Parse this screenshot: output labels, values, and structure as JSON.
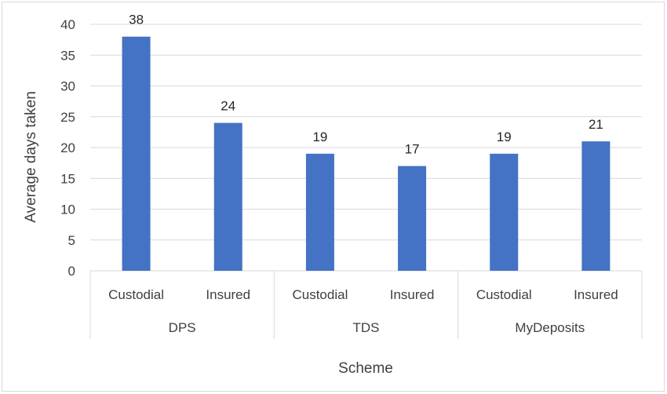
{
  "chart_data": {
    "type": "bar",
    "title": "",
    "xlabel": "Scheme",
    "ylabel": "Average days taken",
    "ylim": [
      0,
      40
    ],
    "yticks": [
      0,
      5,
      10,
      15,
      20,
      25,
      30,
      35,
      40
    ],
    "groups": [
      {
        "label": "DPS",
        "categories": [
          "Custodial",
          "Insured"
        ]
      },
      {
        "label": "TDS",
        "categories": [
          "Custodial",
          "Insured"
        ]
      },
      {
        "label": "MyDeposits",
        "categories": [
          "Custodial",
          "Insured"
        ]
      }
    ],
    "values": [
      38,
      24,
      19,
      17,
      19,
      21
    ],
    "bar_color": "#4472c4",
    "grid": true,
    "data_labels": true,
    "legend": "none"
  }
}
